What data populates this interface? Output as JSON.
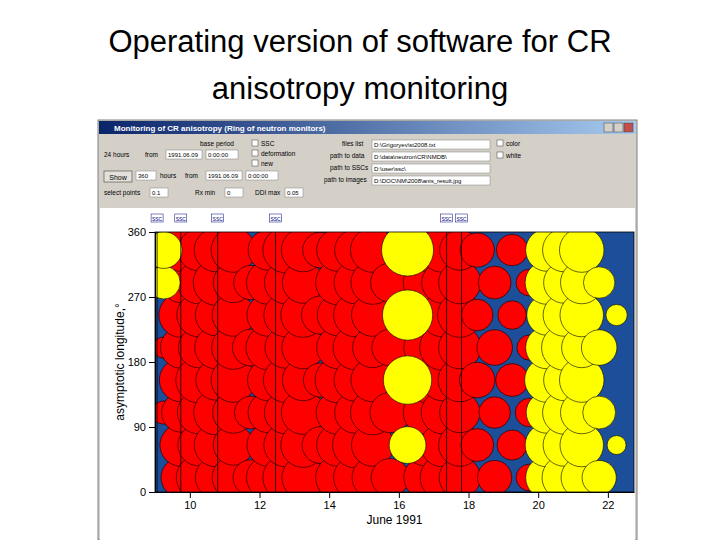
{
  "chart_data": {
    "type": "scatter",
    "title": "Operating version of software for CR anisotropy monitoring",
    "x_label": "June 1991",
    "y_label": "asymptotic longitude,°",
    "xlim": [
      9.0,
      22.75
    ],
    "xticks": [
      10,
      12,
      14,
      16,
      18,
      20,
      22
    ],
    "ylim": [
      0,
      360
    ],
    "yticks": [
      0,
      90,
      180,
      270,
      360
    ],
    "marker": "circle",
    "annotations": [
      {
        "x": 9.06,
        "text": "SSC"
      },
      {
        "x": 9.74,
        "text": "SSC"
      },
      {
        "x": 10.8,
        "text": "SSC"
      },
      {
        "x": 12.46,
        "text": "SSC"
      },
      {
        "x": 17.37,
        "text": "SSC"
      },
      {
        "x": 17.8,
        "text": "SSC"
      }
    ],
    "series": [
      {
        "color": "#ff0000",
        "x": [
          9.25,
          9.25,
          9.75,
          9.75,
          9.75,
          9.75,
          9.75,
          9.75,
          9.75,
          9.75,
          10.25,
          10.25,
          10.25,
          10.25,
          10.25,
          10.25,
          10.25,
          10.25,
          10.75,
          10.75,
          10.75,
          10.75,
          10.75,
          10.75,
          10.75,
          10.75,
          11.25,
          11.25,
          11.25,
          11.25,
          11.25,
          11.25,
          11.25,
          11.25,
          11.75,
          11.75,
          11.75,
          11.75,
          12.25,
          12.25,
          12.25,
          12.25,
          12.25,
          12.25,
          12.25,
          12.25,
          12.75,
          12.75,
          12.75,
          12.75,
          12.75,
          12.75,
          12.75,
          12.75,
          13.25,
          13.25,
          13.25,
          13.25,
          13.25,
          13.25,
          13.25,
          13.25,
          13.75,
          13.75,
          13.75,
          13.75,
          14.25,
          14.25,
          14.25,
          14.25,
          14.25,
          14.25,
          14.25,
          14.25,
          14.75,
          14.75,
          14.75,
          14.75,
          14.75,
          14.75,
          14.75,
          14.75,
          15.25,
          15.25,
          15.25,
          15.25,
          15.25,
          15.25,
          15.25,
          15.25,
          15.75,
          15.75,
          15.75,
          15.75,
          16.75,
          16.75,
          16.75,
          16.75,
          16.75,
          16.75,
          16.75,
          16.75,
          17.25,
          17.25,
          17.25,
          17.25,
          17.25,
          17.25,
          17.25,
          17.25,
          17.75,
          17.75,
          17.75,
          17.75,
          17.75,
          17.75,
          17.75,
          17.75,
          18.25,
          18.25,
          18.25,
          18.25,
          18.75,
          18.75,
          18.75,
          18.75,
          19.25,
          19.25,
          19.25,
          19.25,
          19.75,
          19.75,
          19.75,
          19.75
        ],
        "values": [
          110,
          200,
          20,
          65,
          110,
          155,
          200,
          245,
          290,
          335,
          20,
          65,
          110,
          155,
          200,
          245,
          290,
          335,
          20,
          65,
          110,
          155,
          200,
          245,
          290,
          335,
          20,
          65,
          110,
          155,
          200,
          245,
          290,
          335,
          20,
          110,
          200,
          290,
          20,
          65,
          110,
          155,
          200,
          245,
          290,
          335,
          20,
          65,
          110,
          155,
          200,
          245,
          290,
          335,
          20,
          65,
          110,
          155,
          200,
          245,
          290,
          335,
          65,
          155,
          245,
          335,
          20,
          65,
          110,
          155,
          200,
          245,
          290,
          335,
          20,
          65,
          110,
          155,
          200,
          245,
          290,
          335,
          20,
          65,
          110,
          155,
          200,
          245,
          290,
          335,
          20,
          110,
          200,
          290,
          20,
          65,
          110,
          155,
          200,
          245,
          290,
          335,
          20,
          65,
          110,
          155,
          200,
          245,
          290,
          335,
          20,
          65,
          110,
          155,
          200,
          245,
          290,
          335,
          65,
          155,
          245,
          335,
          20,
          110,
          200,
          290,
          65,
          155,
          245,
          335,
          20,
          110,
          200,
          290
        ],
        "size": [
          0.6,
          0.5,
          1.8,
          2.0,
          1.7,
          2.1,
          1.9,
          2.2,
          1.8,
          2.0,
          2.2,
          1.9,
          2.0,
          2.3,
          1.8,
          2.1,
          2.0,
          1.9,
          1.9,
          2.1,
          2.2,
          1.8,
          2.0,
          1.9,
          2.3,
          2.1,
          2.0,
          1.8,
          1.9,
          2.2,
          2.1,
          2.0,
          1.8,
          2.2,
          1.4,
          1.2,
          1.5,
          1.3,
          2.1,
          2.0,
          1.8,
          1.9,
          2.2,
          2.0,
          2.1,
          1.8,
          2.3,
          2.1,
          2.0,
          2.2,
          1.9,
          2.1,
          2.0,
          2.3,
          2.0,
          2.2,
          2.1,
          1.9,
          2.0,
          2.2,
          1.9,
          2.1,
          1.5,
          1.3,
          1.6,
          1.4,
          2.2,
          2.0,
          2.1,
          2.3,
          2.0,
          1.9,
          2.2,
          2.0,
          2.1,
          2.3,
          1.9,
          2.0,
          2.2,
          2.1,
          2.0,
          1.9,
          1.9,
          2.0,
          2.2,
          2.1,
          1.8,
          2.0,
          2.1,
          2.2,
          1.6,
          1.8,
          1.5,
          1.7,
          2.0,
          1.9,
          2.1,
          2.2,
          2.0,
          1.8,
          2.1,
          2.0,
          2.2,
          2.1,
          2.0,
          1.9,
          2.3,
          2.1,
          1.9,
          2.2,
          1.9,
          2.0,
          1.8,
          2.1,
          2.0,
          2.2,
          2.0,
          1.8,
          1.2,
          1.4,
          1.1,
          1.3,
          1.3,
          1.1,
          1.4,
          1.2,
          1.0,
          1.2,
          0.9,
          1.1,
          0.8,
          0.9,
          0.7,
          0.8
        ]
      },
      {
        "color": "#ffff00",
        "x": [
          9.25,
          9.25,
          16.25,
          16.25,
          16.25,
          16.25,
          20.25,
          20.25,
          20.25,
          20.25,
          20.25,
          20.25,
          20.25,
          20.25,
          20.75,
          20.75,
          20.75,
          20.75,
          20.75,
          20.75,
          20.75,
          20.75,
          21.25,
          21.25,
          21.25,
          21.25,
          21.25,
          21.25,
          21.25,
          21.25,
          21.75,
          21.75,
          21.75,
          21.75,
          22.25,
          22.25
        ],
        "values": [
          290,
          335,
          65,
          155,
          245,
          335,
          20,
          65,
          110,
          155,
          200,
          245,
          290,
          335,
          20,
          65,
          110,
          155,
          200,
          245,
          290,
          335,
          20,
          65,
          110,
          155,
          200,
          245,
          290,
          335,
          20,
          110,
          200,
          290,
          65,
          245
        ],
        "size": [
          1.2,
          1.5,
          1.5,
          2.6,
          2.8,
          3.0,
          2.0,
          2.1,
          1.9,
          2.2,
          2.0,
          1.8,
          2.1,
          2.0,
          2.2,
          2.0,
          2.1,
          1.9,
          2.3,
          2.0,
          1.9,
          2.1,
          1.9,
          2.1,
          2.0,
          2.2,
          1.8,
          2.1,
          2.0,
          2.2,
          1.3,
          1.2,
          1.4,
          1.1,
          0.4,
          0.5
        ]
      }
    ]
  },
  "window": {
    "title": "Monitoring of CR anisotropy (Ring of neutron monitors)",
    "controls": [
      "base period",
      "24 hours",
      "from",
      "1991.06.09",
      "0:00:00",
      "Show",
      "360",
      "hours",
      "from",
      "1991.06.09",
      "0:00:00",
      "select points",
      "0.1",
      "Rx min",
      "0",
      "DDI max",
      "0.05",
      "SSC",
      "deformation",
      "new",
      "files list",
      "D:\\Grigoryev\\st2008.txt",
      "path to data",
      "D:\\data\\neutron\\CR\\NMDB\\",
      "path to SSCs",
      "D:\\user\\ssc\\",
      "path to images",
      "D:\\DOC\\NM\\2008\\anis_result.jpg",
      "color",
      "white"
    ]
  }
}
